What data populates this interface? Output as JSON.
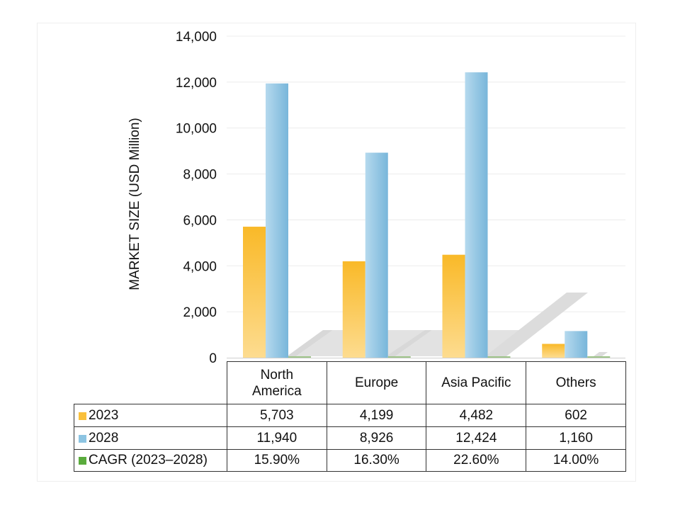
{
  "chart_data": {
    "type": "bar",
    "title": "",
    "xlabel": "",
    "ylabel": "MARKET SIZE (USD Million)",
    "ylim": [
      0,
      14000
    ],
    "yticks": [
      "0",
      "2,000",
      "4,000",
      "6,000",
      "8,000",
      "10,000",
      "12,000",
      "14,000"
    ],
    "grid": true,
    "legend": "in data table (left column)",
    "categories": [
      "North America",
      "Europe",
      "Asia Pacific",
      "Others"
    ],
    "series": [
      {
        "name": "2023",
        "color": "#f9c03c",
        "values": [
          5703,
          4199,
          4482,
          602
        ],
        "labels": [
          "5,703",
          "4,199",
          "4,482",
          "602"
        ]
      },
      {
        "name": "2028",
        "color": "#8cc4e2",
        "values": [
          11940,
          8926,
          12424,
          1160
        ],
        "labels": [
          "11,940",
          "8,926",
          "12,424",
          "1,160"
        ]
      },
      {
        "name": "CAGR (2023–2028)",
        "color": "#5aab3c",
        "values": [
          15.9,
          16.3,
          22.6,
          14.0
        ],
        "labels": [
          "15.90%",
          "16.30%",
          "22.60%",
          "14.00%"
        ]
      }
    ]
  }
}
